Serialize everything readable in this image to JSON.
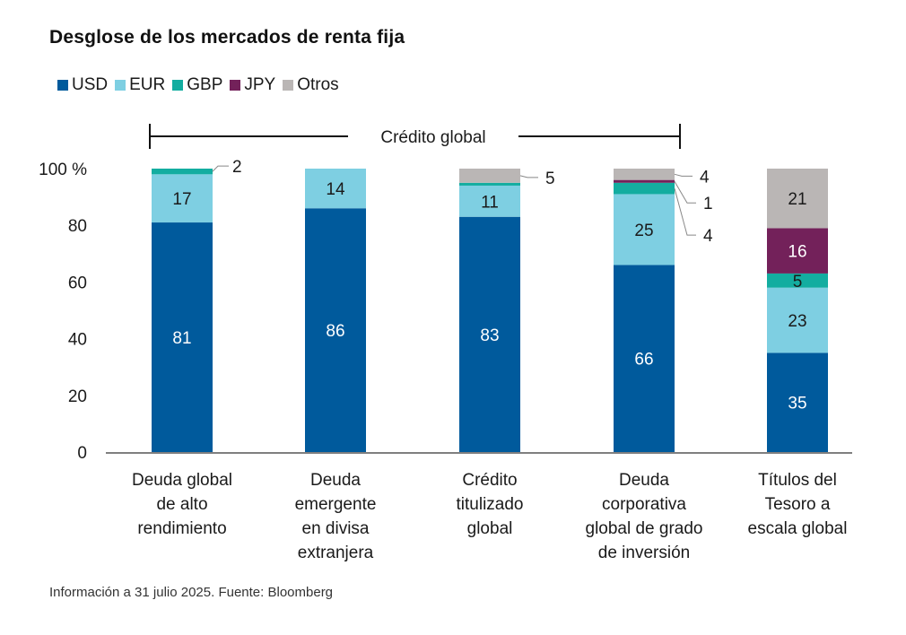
{
  "chart_data": {
    "type": "bar",
    "stacked": true,
    "title": "Desglose de los mercados de renta fija",
    "xlabel": "",
    "ylabel": "",
    "ylim": [
      0,
      100
    ],
    "y_ticks": [
      "0",
      "20",
      "40",
      "60",
      "80",
      "100 %"
    ],
    "y_tick_values": [
      0,
      20,
      40,
      60,
      80,
      100
    ],
    "grid": false,
    "legend_position": "top-left",
    "categories": [
      [
        "Deuda global",
        "de alto",
        "rendimiento"
      ],
      [
        "Deuda",
        "emergente",
        "en divisa",
        "extranjera"
      ],
      [
        "Crédito",
        "titulizado",
        "global"
      ],
      [
        "Deuda",
        "corporativa",
        "global de grado",
        "de inversión"
      ],
      [
        "Títulos del",
        "Tesoro a",
        "escala global"
      ]
    ],
    "series": [
      {
        "name": "USD",
        "color": "#005a9c",
        "label_color": "#ffffff",
        "values": [
          81,
          86,
          83,
          66,
          35
        ],
        "labels": [
          "81",
          "86",
          "83",
          "66",
          "35"
        ]
      },
      {
        "name": "EUR",
        "color": "#7ecfe2",
        "label_color": "#1a1a1a",
        "values": [
          17,
          14,
          11,
          25,
          23
        ],
        "labels": [
          "17",
          "14",
          "11",
          "25",
          "23"
        ]
      },
      {
        "name": "GBP",
        "color": "#13ada0",
        "label_color": "#1a1a1a",
        "values": [
          2,
          0,
          1,
          4,
          5
        ],
        "labels": [
          "",
          "",
          "",
          "",
          "5"
        ]
      },
      {
        "name": "JPY",
        "color": "#73215a",
        "label_color": "#ffffff",
        "values": [
          0,
          0,
          0,
          1,
          16
        ],
        "labels": [
          "",
          "",
          "",
          "",
          "16"
        ]
      },
      {
        "name": "Otros",
        "color": "#bab6b5",
        "label_color": "#1a1a1a",
        "values": [
          0,
          0,
          5,
          4,
          21
        ],
        "labels": [
          "",
          "",
          "",
          "",
          "21"
        ]
      }
    ],
    "callouts": [
      {
        "category_index": 0,
        "series": "GBP",
        "text": "2"
      },
      {
        "category_index": 2,
        "series": "Otros",
        "text": "5"
      },
      {
        "category_index": 3,
        "series": "Otros",
        "text": "4"
      },
      {
        "category_index": 3,
        "series": "JPY",
        "text": "1"
      },
      {
        "category_index": 3,
        "series": "GBP",
        "text": "4"
      }
    ],
    "annotations": [
      {
        "text": "Crédito global",
        "spans_categories": [
          0,
          3
        ]
      }
    ],
    "source_note": "Información a 31 julio 2025. Fuente: Bloomberg"
  }
}
